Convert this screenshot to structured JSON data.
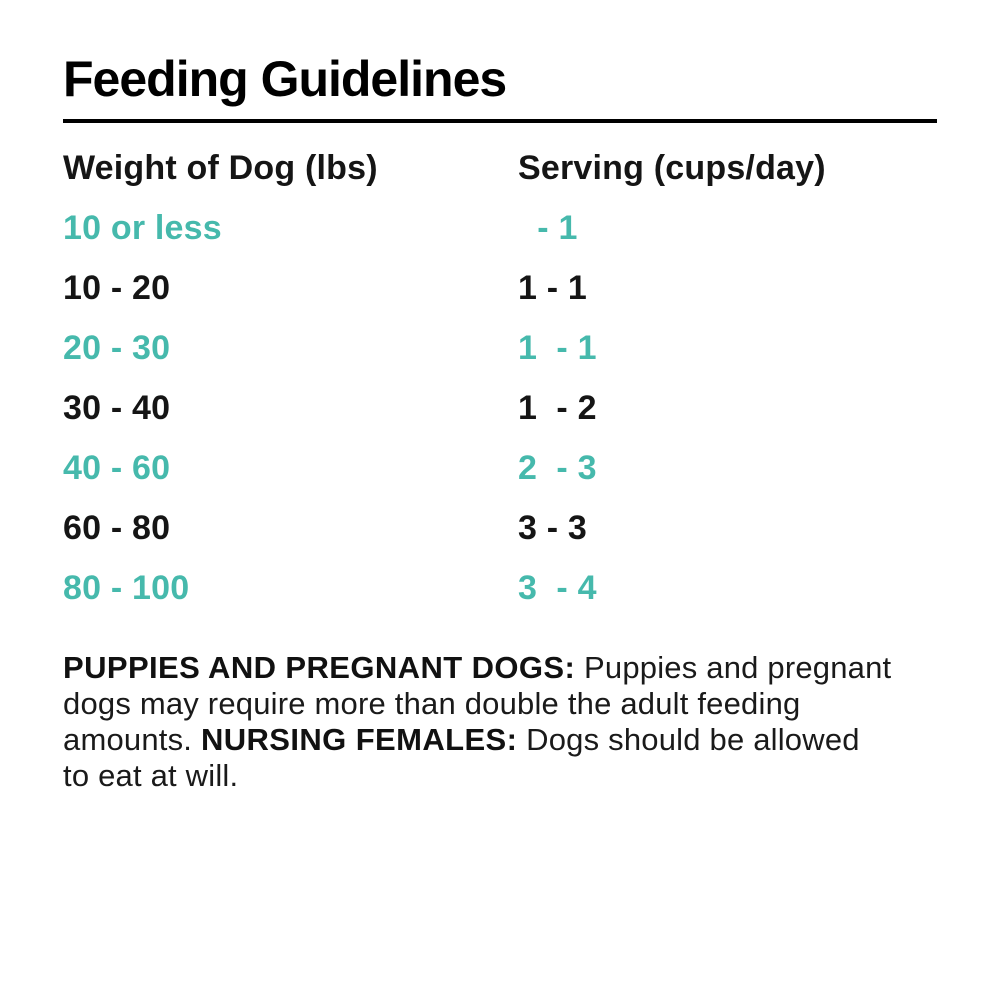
{
  "title": "Feeding Guidelines",
  "colors": {
    "accent": "#46b9ac",
    "text": "#151515",
    "title": "#000000",
    "divider": "#000000",
    "background": "#ffffff"
  },
  "table": {
    "headers": {
      "weight": "Weight of Dog (lbs)",
      "serving": "Serving (cups/day)"
    },
    "rows": [
      {
        "weight": "10 or less",
        "serving": "  - 1",
        "accent": true
      },
      {
        "weight": "10 - 20",
        "serving": "1 - 1",
        "accent": false
      },
      {
        "weight": "20 - 30",
        "serving": "1  - 1",
        "accent": true
      },
      {
        "weight": "30 - 40",
        "serving": "1  - 2",
        "accent": false
      },
      {
        "weight": "40 - 60",
        "serving": "2  - 3",
        "accent": true
      },
      {
        "weight": "60 - 80",
        "serving": "3 - 3",
        "accent": false
      },
      {
        "weight": "80 - 100",
        "serving": "3  - 4",
        "accent": true
      }
    ]
  },
  "note": {
    "line1": {
      "pre": "",
      "bold": "PUPPIES AND PREGNANT DOGS:",
      "post": " Puppies and pregnant"
    },
    "line2": {
      "pre": "dogs may require more than double the adult feeding",
      "bold": "",
      "post": ""
    },
    "line3": {
      "pre": "amounts. ",
      "bold": "NURSING FEMALES:",
      "post": " Dogs should be allowed"
    },
    "line4": {
      "pre": "to eat at will.",
      "bold": "",
      "post": ""
    }
  }
}
